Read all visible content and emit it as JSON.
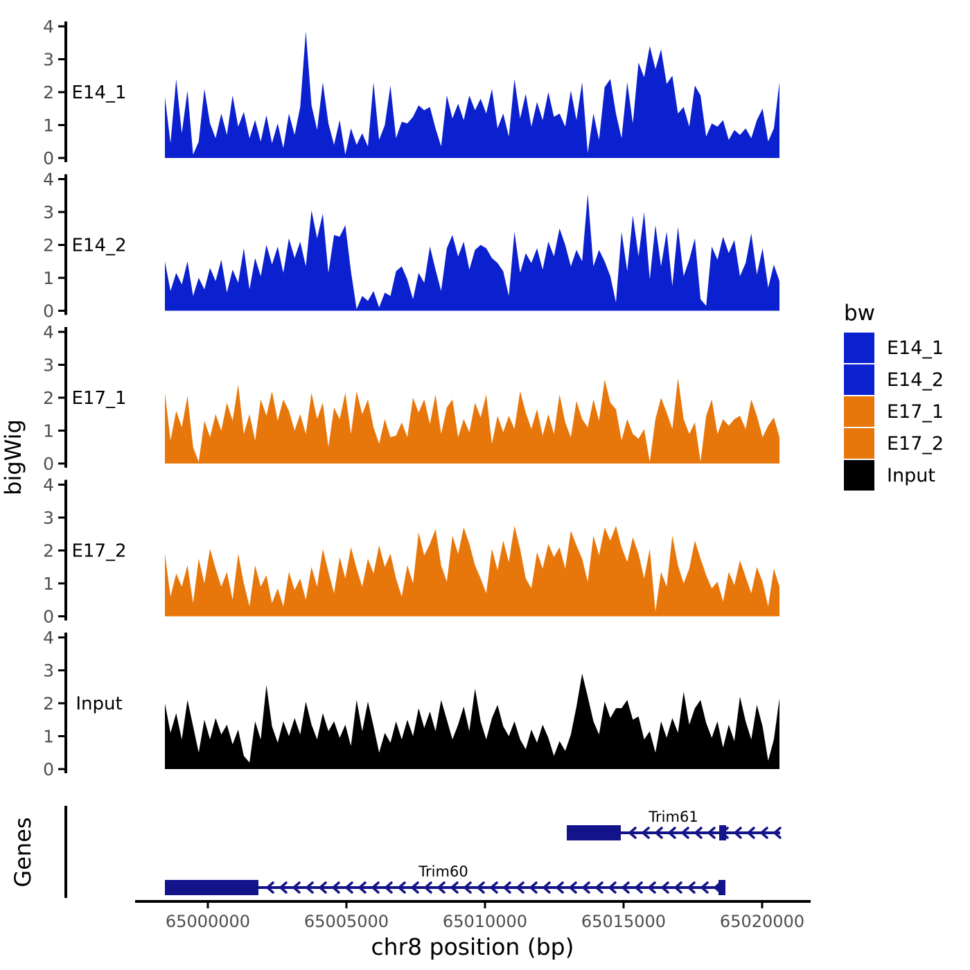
{
  "figure": {
    "y_axis_title": "bigWig",
    "genes_axis_title": "Genes",
    "x_axis_title": "chr8 position (bp)",
    "legend": {
      "title": "bw",
      "entries": [
        {
          "label": "E14_1",
          "color": "#0B20CE"
        },
        {
          "label": "E14_2",
          "color": "#0B20CE"
        },
        {
          "label": "E17_1",
          "color": "#E8770B"
        },
        {
          "label": "E17_2",
          "color": "#E8770B"
        },
        {
          "label": "Input",
          "color": "#000000"
        }
      ]
    },
    "colors": {
      "blue": "#0B20CE",
      "orange": "#E8770B",
      "black": "#000000",
      "gene_navy": "#13138A",
      "tick_text": "#4D4D4D",
      "axis": "#000000"
    }
  },
  "chart_data": {
    "type": "area",
    "title": "",
    "xlabel": "chr8 position (bp)",
    "ylabel": "bigWig",
    "legend_title": "bw",
    "legend_position": "right",
    "grid": false,
    "xlim": [
      64997375,
      65021750
    ],
    "x_ticks": [
      65000000,
      65005000,
      65010000,
      65015000,
      65020000
    ],
    "x_tick_labels": [
      "65000000",
      "65005000",
      "65010000",
      "65015000",
      "65020000"
    ],
    "ylim": [
      0,
      4
    ],
    "y_ticks": [
      0,
      1,
      2,
      3,
      4
    ],
    "data_bp_start": 64998450,
    "data_bp_end": 65020625,
    "tracks": [
      {
        "name": "E14_1",
        "color": "#0B20CE",
        "values": [
          1.85,
          0.45,
          2.4,
          0.75,
          2.05,
          0.1,
          0.5,
          2.1,
          1.05,
          0.6,
          1.35,
          0.7,
          1.9,
          0.95,
          1.4,
          0.6,
          1.15,
          0.5,
          1.3,
          0.45,
          1.05,
          0.3,
          1.35,
          0.7,
          1.55,
          3.85,
          1.6,
          0.85,
          2.3,
          1.05,
          0.4,
          1.15,
          0.1,
          0.9,
          0.4,
          0.75,
          0.35,
          2.3,
          0.55,
          1.0,
          2.2,
          0.6,
          1.1,
          1.05,
          1.25,
          1.6,
          1.45,
          1.55,
          0.9,
          0.35,
          1.9,
          1.2,
          1.65,
          1.15,
          1.9,
          1.45,
          1.8,
          1.35,
          2.1,
          0.9,
          1.35,
          0.65,
          2.4,
          1.2,
          1.95,
          0.95,
          1.7,
          1.15,
          2.0,
          1.25,
          1.35,
          0.95,
          2.05,
          1.15,
          2.3,
          0.15,
          1.35,
          0.55,
          2.15,
          2.4,
          1.35,
          0.6,
          2.3,
          1.05,
          2.9,
          2.45,
          3.4,
          2.7,
          3.3,
          2.25,
          2.5,
          1.35,
          1.55,
          0.95,
          2.2,
          1.9,
          0.65,
          1.05,
          0.95,
          1.15,
          0.55,
          0.85,
          0.7,
          0.9,
          0.6,
          1.15,
          1.5,
          0.5,
          0.9,
          2.3
        ]
      },
      {
        "name": "E14_2",
        "color": "#0B20CE",
        "values": [
          1.5,
          0.6,
          1.15,
          0.8,
          1.5,
          0.45,
          1.0,
          0.65,
          1.3,
          0.9,
          1.55,
          0.55,
          1.25,
          0.85,
          1.9,
          0.65,
          1.6,
          1.05,
          2.0,
          1.4,
          1.95,
          1.15,
          2.2,
          1.6,
          2.1,
          1.35,
          3.05,
          2.2,
          2.95,
          1.15,
          2.3,
          2.25,
          2.6,
          1.2,
          0.05,
          0.45,
          0.3,
          0.6,
          0.1,
          0.55,
          0.45,
          1.2,
          1.35,
          0.95,
          0.35,
          1.15,
          0.85,
          1.95,
          1.25,
          0.6,
          1.9,
          2.3,
          1.65,
          2.1,
          1.25,
          1.85,
          2.0,
          1.9,
          1.6,
          1.45,
          1.2,
          0.45,
          2.4,
          1.15,
          1.75,
          1.45,
          1.9,
          1.25,
          2.1,
          1.65,
          2.5,
          2.0,
          1.35,
          1.85,
          1.5,
          3.55,
          1.35,
          1.85,
          1.5,
          1.05,
          0.25,
          2.4,
          1.2,
          2.9,
          1.65,
          3.0,
          0.95,
          2.6,
          1.35,
          2.4,
          0.75,
          2.55,
          1.05,
          1.55,
          2.2,
          0.35,
          0.15,
          1.95,
          1.55,
          2.25,
          1.75,
          2.15,
          1.05,
          1.45,
          2.35,
          1.1,
          1.9,
          0.7,
          1.4,
          0.9
        ]
      },
      {
        "name": "E17_1",
        "color": "#E8770B",
        "values": [
          2.15,
          0.7,
          1.6,
          1.1,
          2.05,
          0.5,
          0.05,
          1.3,
          0.8,
          1.5,
          1.0,
          1.85,
          1.3,
          2.4,
          0.9,
          1.5,
          0.7,
          1.95,
          1.45,
          2.2,
          1.3,
          1.95,
          1.6,
          1.0,
          1.5,
          0.9,
          2.15,
          1.35,
          1.85,
          0.5,
          1.7,
          1.35,
          2.15,
          0.9,
          2.2,
          1.5,
          1.95,
          1.1,
          0.6,
          1.35,
          0.8,
          0.85,
          1.25,
          0.8,
          2.0,
          1.55,
          1.95,
          1.2,
          2.1,
          0.9,
          1.7,
          1.95,
          0.8,
          1.35,
          0.95,
          1.85,
          1.4,
          2.1,
          0.6,
          1.45,
          0.95,
          1.45,
          1.05,
          2.2,
          1.55,
          1.05,
          1.65,
          0.85,
          1.5,
          0.9,
          2.1,
          1.25,
          0.8,
          1.9,
          1.35,
          1.1,
          1.95,
          1.3,
          2.55,
          1.85,
          1.65,
          0.7,
          1.35,
          0.9,
          0.75,
          1.05,
          0.05,
          1.35,
          2.0,
          1.55,
          1.05,
          2.6,
          1.35,
          0.9,
          1.25,
          0.05,
          1.45,
          1.95,
          0.9,
          1.35,
          1.15,
          1.35,
          1.45,
          1.05,
          1.95,
          1.45,
          0.8,
          1.15,
          1.4,
          0.8
        ]
      },
      {
        "name": "E17_2",
        "color": "#E8770B",
        "values": [
          1.9,
          0.6,
          1.3,
          0.9,
          1.55,
          0.4,
          1.75,
          1.0,
          2.05,
          1.45,
          0.9,
          1.35,
          0.5,
          1.9,
          1.0,
          0.3,
          1.55,
          0.9,
          1.25,
          0.4,
          0.85,
          0.3,
          1.35,
          0.8,
          1.15,
          0.5,
          1.5,
          0.9,
          2.05,
          1.35,
          0.7,
          1.8,
          1.15,
          2.1,
          1.45,
          0.9,
          1.75,
          1.3,
          2.15,
          1.5,
          1.9,
          1.15,
          0.6,
          1.55,
          1.0,
          2.55,
          1.85,
          2.2,
          2.65,
          1.55,
          1.05,
          2.45,
          1.9,
          2.7,
          2.2,
          1.55,
          1.15,
          0.7,
          2.05,
          1.4,
          2.3,
          1.65,
          2.75,
          2.05,
          1.15,
          0.85,
          1.95,
          1.45,
          2.2,
          1.8,
          2.1,
          1.45,
          2.6,
          2.15,
          1.75,
          1.05,
          2.45,
          1.85,
          2.7,
          2.3,
          2.75,
          2.1,
          1.65,
          2.4,
          1.9,
          1.15,
          2.05,
          0.15,
          1.35,
          0.9,
          2.45,
          1.55,
          1.0,
          1.45,
          2.3,
          1.75,
          1.25,
          0.85,
          1.05,
          0.45,
          1.35,
          0.95,
          1.7,
          1.2,
          0.7,
          1.5,
          1.05,
          0.3,
          1.45,
          0.9
        ]
      },
      {
        "name": "Input",
        "color": "#000000",
        "values": [
          2.0,
          1.1,
          1.7,
          0.9,
          2.1,
          1.3,
          0.5,
          1.5,
          0.9,
          1.55,
          1.05,
          1.35,
          0.75,
          1.2,
          0.4,
          0.2,
          1.45,
          0.9,
          2.55,
          1.3,
          0.8,
          1.45,
          1.0,
          1.55,
          1.05,
          2.05,
          1.35,
          0.9,
          1.7,
          1.15,
          1.45,
          0.95,
          1.35,
          0.7,
          2.1,
          1.15,
          2.05,
          1.3,
          0.5,
          1.1,
          0.8,
          1.45,
          0.9,
          1.5,
          1.0,
          1.85,
          1.25,
          1.75,
          1.15,
          2.1,
          1.5,
          0.9,
          1.35,
          1.9,
          1.15,
          2.45,
          1.45,
          0.9,
          1.55,
          1.95,
          1.3,
          1.0,
          1.45,
          0.9,
          0.6,
          1.2,
          0.8,
          1.35,
          0.95,
          0.4,
          0.85,
          0.55,
          1.05,
          1.9,
          2.9,
          2.2,
          1.45,
          1.05,
          2.05,
          1.55,
          1.85,
          1.85,
          2.1,
          1.5,
          1.6,
          0.9,
          1.15,
          0.5,
          1.45,
          0.95,
          1.55,
          1.1,
          2.35,
          1.35,
          1.85,
          2.1,
          1.4,
          0.95,
          1.45,
          0.65,
          1.35,
          0.85,
          2.2,
          1.45,
          0.9,
          1.95,
          1.3,
          0.25,
          0.9,
          2.15
        ]
      }
    ],
    "genes": [
      {
        "name": "Trim61",
        "strand": "-",
        "row": 0,
        "label_bp": 65016800,
        "line": [
          65014900,
          65020650
        ],
        "exons": [
          [
            65012950,
            65014900
          ],
          [
            65018450,
            65018700
          ]
        ]
      },
      {
        "name": "Trim60",
        "strand": "-",
        "row": 1,
        "label_bp": 65008500,
        "line": [
          65001825,
          65018675
        ],
        "exons": [
          [
            64998450,
            65001825
          ],
          [
            65018425,
            65018675
          ]
        ]
      }
    ]
  }
}
